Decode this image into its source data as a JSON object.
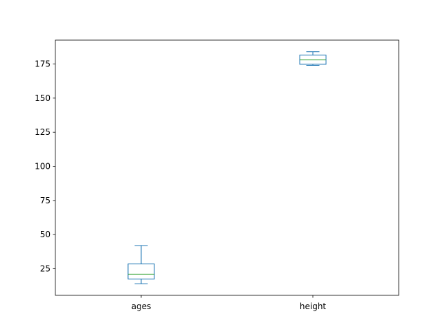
{
  "chart_data": {
    "type": "box",
    "title": "",
    "xlabel": "",
    "ylabel": "",
    "categories": [
      "ages",
      "height"
    ],
    "boxes": [
      {
        "name": "ages",
        "whisker_low": 14,
        "q1": 17.5,
        "median": 21,
        "q3": 28.5,
        "whisker_high": 42
      },
      {
        "name": "height",
        "whisker_low": 174,
        "q1": 174.8,
        "median": 178,
        "q3": 181.5,
        "whisker_high": 184
      }
    ],
    "ylim": [
      5.5,
      192.5
    ],
    "yticks": [
      25,
      50,
      75,
      100,
      125,
      150,
      175
    ],
    "grid": false,
    "legend": "none",
    "colors": {
      "box": "#1f77b4",
      "median": "#2ca02c",
      "axes": "#000000"
    }
  }
}
